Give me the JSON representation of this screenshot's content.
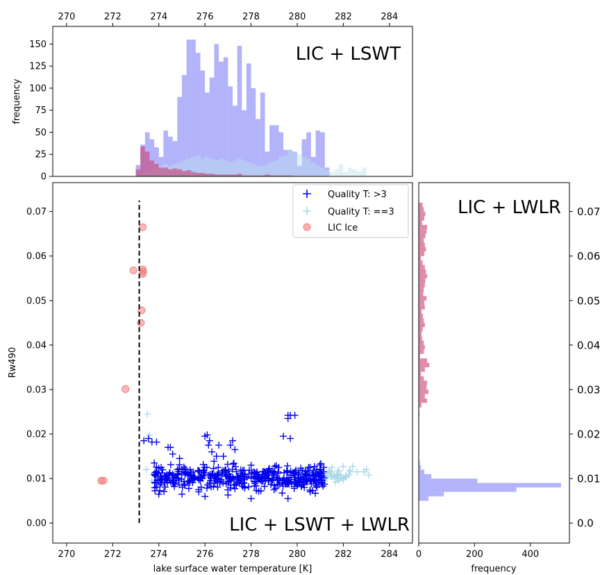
{
  "chart_data": [
    {
      "panel": "top",
      "type": "histogram",
      "title": "LIC + LSWT",
      "xlabel": "",
      "ylabel": "frequency",
      "xlim": [
        269.4,
        285.0
      ],
      "ylim": [
        0,
        170
      ],
      "xticks": [
        "270",
        "272",
        "274",
        "276",
        "278",
        "280",
        "282",
        "284"
      ],
      "yticks": [
        "0",
        "25",
        "50",
        "75",
        "100",
        "125",
        "150"
      ],
      "bin_start": 273.0,
      "bin_width": 0.2,
      "series": [
        {
          "color": "#8080f8",
          "values": [
            13,
            36,
            50,
            42,
            33,
            22,
            52,
            45,
            40,
            90,
            115,
            155,
            155,
            140,
            120,
            95,
            112,
            150,
            130,
            135,
            102,
            80,
            148,
            75,
            128,
            100,
            65,
            95,
            28,
            58,
            58,
            50,
            30,
            30,
            28,
            12,
            42,
            50,
            22,
            52,
            50,
            10
          ]
        },
        {
          "color": "#bde3ec",
          "values": [
            2,
            3,
            5,
            8,
            10,
            12,
            14,
            12,
            14,
            16,
            18,
            20,
            22,
            24,
            20,
            22,
            20,
            18,
            20,
            18,
            16,
            18,
            20,
            18,
            16,
            14,
            12,
            12,
            14,
            16,
            18,
            22,
            24,
            30,
            28,
            25,
            22,
            20,
            15,
            12,
            10,
            8,
            5,
            8,
            14,
            5,
            10,
            8,
            6,
            10
          ]
        },
        {
          "color": "#c84070",
          "values": [
            8,
            34,
            28,
            18,
            14,
            10,
            10,
            8,
            9,
            8,
            6,
            7,
            5,
            4,
            4,
            3,
            3,
            2,
            2,
            2,
            2,
            2,
            3,
            1,
            1,
            1,
            1,
            1,
            2,
            1,
            1,
            1,
            1,
            1
          ]
        }
      ]
    },
    {
      "panel": "main",
      "type": "scatter",
      "title": "LIC + LSWT + LWLR",
      "xlabel": "lake surface water temperature [K]",
      "ylabel": "Rw490",
      "xlim": [
        269.4,
        285.0
      ],
      "ylim": [
        -0.0045,
        0.0765
      ],
      "xticks": [
        "270",
        "272",
        "274",
        "276",
        "278",
        "280",
        "282",
        "284"
      ],
      "yticks": [
        "0.00",
        "0.01",
        "0.02",
        "0.03",
        "0.04",
        "0.05",
        "0.06",
        "0.07"
      ],
      "threshold_line": {
        "x": 273.15,
        "y_range": [
          0.0,
          0.0725
        ]
      },
      "legend": {
        "placement": "upper right",
        "entries": [
          {
            "label": "Quality T: >3",
            "marker": "+",
            "color": "#0000ee"
          },
          {
            "label": "Quality T: ==3",
            "marker": "+",
            "color": "#a9d8e6"
          },
          {
            "label": "LIC Ice",
            "marker": "o",
            "color": "#f08080"
          }
        ]
      },
      "series": [
        {
          "name": "Quality T: >3",
          "marker": "+",
          "color": "#0000ee",
          "points": [
            [
              273.35,
              0.0185
            ],
            [
              273.55,
              0.019
            ],
            [
              273.7,
              0.0182
            ],
            [
              273.9,
              0.0182
            ],
            [
              274.4,
              0.017
            ],
            [
              274.5,
              0.017
            ],
            [
              274.6,
              0.0155
            ],
            [
              274.9,
              0.0145
            ],
            [
              276.0,
              0.0195
            ],
            [
              276.1,
              0.0198
            ],
            [
              276.2,
              0.0185
            ],
            [
              276.15,
              0.0175
            ],
            [
              276.3,
              0.016
            ],
            [
              276.5,
              0.015
            ],
            [
              276.6,
              0.0175
            ],
            [
              276.8,
              0.015
            ],
            [
              277.2,
              0.0185
            ],
            [
              277.3,
              0.0165
            ],
            [
              277.1,
              0.0175
            ],
            [
              279.6,
              0.0242
            ],
            [
              279.7,
              0.0242
            ],
            [
              279.9,
              0.0242
            ],
            [
              279.6,
              0.0235
            ],
            [
              279.4,
              0.0195
            ],
            [
              279.7,
              0.019
            ],
            [
              273.85,
              0.009
            ],
            [
              274.1,
              0.0125
            ],
            [
              274.3,
              0.0105
            ],
            [
              274.6,
              0.011
            ],
            [
              275.0,
              0.012
            ],
            [
              275.4,
              0.0105
            ],
            [
              275.8,
              0.0095
            ],
            [
              276.3,
              0.011
            ],
            [
              276.9,
              0.012
            ],
            [
              277.4,
              0.0105
            ],
            [
              278.0,
              0.013
            ],
            [
              278.6,
              0.0105
            ],
            [
              279.2,
              0.0125
            ],
            [
              279.9,
              0.0115
            ],
            [
              280.5,
              0.0125
            ],
            [
              281.0,
              0.012
            ],
            [
              274.0,
              0.0065
            ],
            [
              275.0,
              0.0065
            ],
            [
              276.0,
              0.006
            ],
            [
              277.0,
              0.0063
            ],
            [
              278.0,
              0.0055
            ],
            [
              279.0,
              0.0075
            ],
            [
              279.6,
              0.0055
            ],
            [
              273.8,
              0.0135
            ]
          ],
          "cloud": {
            "x_range": [
              273.8,
              281.2
            ],
            "y_center": 0.0102,
            "y_spread": 0.0023,
            "count": 420
          }
        },
        {
          "name": "Quality T: ==3",
          "marker": "+",
          "color": "#a9d8e6",
          "points": [
            [
              273.5,
              0.0245
            ],
            [
              273.6,
              0.0198
            ],
            [
              273.45,
              0.012
            ],
            [
              273.7,
              0.0095
            ],
            [
              282.0,
              0.0127
            ],
            [
              282.3,
              0.0115
            ],
            [
              282.6,
              0.0115
            ],
            [
              282.9,
              0.0115
            ],
            [
              283.0,
              0.012
            ],
            [
              282.4,
              0.0127
            ],
            [
              281.5,
              0.0125
            ],
            [
              281.8,
              0.0118
            ],
            [
              281.6,
              0.0103
            ],
            [
              281.3,
              0.0112
            ],
            [
              281.9,
              0.0108
            ],
            [
              280.6,
              0.0095
            ],
            [
              280.2,
              0.0105
            ],
            [
              279.8,
              0.0102
            ],
            [
              283.1,
              0.0108
            ]
          ],
          "cloud": {
            "x_range": [
              279.6,
              282.3
            ],
            "y_center": 0.0108,
            "y_spread": 0.0012,
            "count": 60
          }
        },
        {
          "name": "LIC Ice",
          "marker": "o",
          "color": "#f08080",
          "points": [
            [
              273.3,
              0.0665
            ],
            [
              272.9,
              0.0568
            ],
            [
              273.3,
              0.057
            ],
            [
              273.32,
              0.0565
            ],
            [
              273.3,
              0.056
            ],
            [
              273.25,
              0.0478
            ],
            [
              273.22,
              0.045
            ],
            [
              272.55,
              0.0301
            ],
            [
              271.6,
              0.0095
            ],
            [
              271.5,
              0.0095
            ]
          ]
        }
      ]
    },
    {
      "panel": "right",
      "type": "histogram_horizontal",
      "title": "LIC + LWLR",
      "xlabel": "frequency",
      "ylabel": "",
      "xlim": [
        0,
        540
      ],
      "ylim": [
        -0.0045,
        0.0765
      ],
      "xticks": [
        "0",
        "200",
        "400"
      ],
      "yticks": [
        "0.0",
        "0.01",
        "0.02",
        "0.03",
        "0.04",
        "0.05",
        "0.06",
        "0.07"
      ],
      "bin_start": 0.005,
      "bin_width": 0.001,
      "series": [
        {
          "color": "#8080f8",
          "values": [
            35,
            90,
            350,
            510,
            210,
            45,
            20,
            8,
            4,
            2,
            2,
            1,
            1,
            1,
            1,
            1,
            1,
            1,
            1,
            1
          ]
        },
        {
          "color": "#c84070",
          "start": 0.024,
          "values": [
            3,
            2,
            10,
            30,
            22,
            35,
            28,
            30,
            18,
            8,
            22,
            38,
            30,
            5,
            18,
            22,
            18,
            12,
            10,
            14,
            22,
            18,
            15,
            10,
            22,
            20,
            28,
            16,
            18,
            22,
            24,
            30,
            26,
            22,
            14,
            8,
            20,
            26,
            22,
            18,
            24,
            28,
            30,
            12,
            20,
            24,
            18,
            14
          ]
        }
      ]
    }
  ]
}
